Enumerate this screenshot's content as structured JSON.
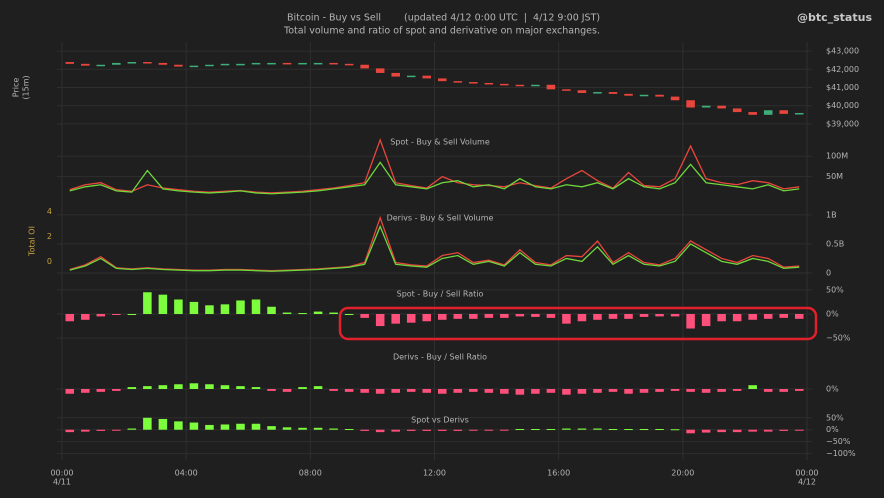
{
  "header": {
    "title": "Bitcoin - Buy vs Sell",
    "updated": "(updated 4/12 0:00 UTC  |  4/12 9:00 JST)",
    "subtitle": "Total volume and ratio of spot and derivative on major exchanges.",
    "handle": "@btc_status"
  },
  "x_axis": {
    "xlim": [
      0,
      24
    ],
    "xticks": [
      {
        "value": 0,
        "label": "00:00"
      },
      {
        "value": 4,
        "label": "04:00"
      },
      {
        "value": 8,
        "label": "08:00"
      },
      {
        "value": 12,
        "label": "12:00"
      },
      {
        "value": 16,
        "label": "16:00"
      },
      {
        "value": 20,
        "label": "20:00"
      },
      {
        "value": 24,
        "label": "00:00"
      }
    ],
    "dates": [
      {
        "value": 0,
        "label": "4/11"
      },
      {
        "value": 24,
        "label": "4/12"
      }
    ],
    "x": [
      0,
      0.5,
      1,
      1.5,
      2,
      2.5,
      3,
      3.5,
      4,
      4.5,
      5,
      5.5,
      6,
      6.5,
      7,
      7.5,
      8,
      8.5,
      9,
      9.5,
      10,
      10.5,
      11,
      11.5,
      12,
      12.5,
      13,
      13.5,
      14,
      14.5,
      15,
      15.5,
      16,
      16.5,
      17,
      17.5,
      18,
      18.5,
      19,
      19.5,
      20,
      20.5,
      21,
      21.5,
      22,
      22.5,
      23,
      23.5
    ]
  },
  "chart_data": [
    {
      "type": "candlestick",
      "ylabel": "Price",
      "ylabel_note": "(15m)",
      "ylim": [
        38500,
        43500
      ],
      "yticks": [
        {
          "value": 39000,
          "label": "$39,000"
        },
        {
          "value": 40000,
          "label": "$40,000"
        },
        {
          "value": 41000,
          "label": "$41,000"
        },
        {
          "value": 42000,
          "label": "$42,000"
        },
        {
          "value": 43000,
          "label": "$43,000"
        }
      ],
      "up_color": "#3fae7a",
      "down_color": "#e8463c",
      "open": [
        42400,
        42300,
        42200,
        42250,
        42350,
        42400,
        42350,
        42250,
        42150,
        42200,
        42250,
        42300,
        42300,
        42350,
        42350,
        42300,
        42350,
        42350,
        42300,
        42250,
        42050,
        41800,
        41600,
        41650,
        41500,
        41350,
        41300,
        41250,
        41200,
        41150,
        41100,
        41150,
        40900,
        40850,
        40700,
        40750,
        40650,
        40550,
        40600,
        40500,
        40300,
        39900,
        40000,
        39850,
        39650,
        39500,
        39750,
        39550
      ],
      "close": [
        42300,
        42200,
        42250,
        42350,
        42400,
        42350,
        42250,
        42150,
        42200,
        42250,
        42300,
        42300,
        42350,
        42350,
        42300,
        42350,
        42350,
        42300,
        42250,
        42050,
        41800,
        41600,
        41650,
        41500,
        41350,
        41300,
        41250,
        41200,
        41150,
        41100,
        41150,
        40900,
        40850,
        40700,
        40750,
        40650,
        40550,
        40600,
        40500,
        40300,
        39900,
        40000,
        39850,
        39650,
        39500,
        39750,
        39550,
        39600
      ]
    },
    {
      "type": "step",
      "title": "Spot - Buy & Sell Volume",
      "ylim": [
        0,
        130
      ],
      "yticks": [
        {
          "value": 50,
          "label": "50M"
        },
        {
          "value": 100,
          "label": "100M"
        }
      ],
      "series": [
        {
          "color": "#e8463c",
          "values": [
            18,
            30,
            35,
            18,
            14,
            30,
            22,
            18,
            14,
            12,
            14,
            16,
            12,
            10,
            12,
            14,
            18,
            22,
            28,
            35,
            140,
            35,
            28,
            22,
            50,
            35,
            30,
            28,
            25,
            35,
            28,
            22,
            45,
            65,
            40,
            22,
            60,
            28,
            25,
            45,
            125,
            45,
            35,
            30,
            40,
            35,
            20,
            25
          ]
        },
        {
          "color": "#6fd63c",
          "values": [
            15,
            25,
            30,
            15,
            12,
            65,
            20,
            15,
            12,
            10,
            12,
            15,
            10,
            8,
            10,
            12,
            15,
            20,
            25,
            30,
            85,
            30,
            25,
            20,
            35,
            40,
            25,
            30,
            20,
            45,
            25,
            20,
            30,
            25,
            35,
            20,
            45,
            25,
            20,
            35,
            80,
            35,
            30,
            25,
            20,
            30,
            15,
            20
          ]
        }
      ]
    },
    {
      "type": "step",
      "title": "Derivs - Buy & Sell Volume",
      "ylim": [
        0,
        1.1
      ],
      "yticks": [
        0,
        {
          "value": 0.5,
          "label": "0.5B"
        },
        {
          "value": 1,
          "label": "1B"
        }
      ],
      "oi_axis": {
        "label": "Total OI",
        "lim": [
          -0.9,
          4.2
        ],
        "ticks": [
          0,
          2,
          4
        ],
        "color": "#c8a040"
      },
      "series": [
        {
          "color": "#e8463c",
          "values": [
            0.06,
            0.14,
            0.28,
            0.09,
            0.07,
            0.09,
            0.07,
            0.06,
            0.05,
            0.05,
            0.06,
            0.06,
            0.05,
            0.04,
            0.05,
            0.06,
            0.07,
            0.09,
            0.11,
            0.18,
            0.95,
            0.18,
            0.14,
            0.12,
            0.3,
            0.35,
            0.18,
            0.22,
            0.14,
            0.4,
            0.18,
            0.14,
            0.3,
            0.28,
            0.55,
            0.18,
            0.35,
            0.18,
            0.14,
            0.25,
            0.55,
            0.4,
            0.25,
            0.18,
            0.3,
            0.25,
            0.1,
            0.12
          ]
        },
        {
          "color": "#6fd63c",
          "values": [
            0.05,
            0.12,
            0.25,
            0.08,
            0.06,
            0.08,
            0.06,
            0.05,
            0.04,
            0.04,
            0.05,
            0.05,
            0.04,
            0.03,
            0.04,
            0.05,
            0.06,
            0.08,
            0.1,
            0.15,
            0.8,
            0.15,
            0.12,
            0.1,
            0.25,
            0.3,
            0.15,
            0.2,
            0.12,
            0.35,
            0.15,
            0.12,
            0.25,
            0.2,
            0.45,
            0.15,
            0.3,
            0.15,
            0.12,
            0.2,
            0.5,
            0.35,
            0.2,
            0.15,
            0.25,
            0.2,
            0.08,
            0.1
          ]
        }
      ]
    },
    {
      "type": "bar",
      "title": "Spot - Buy / Sell Ratio",
      "ylim": [
        -60,
        60
      ],
      "yticks": [
        {
          "value": -50,
          "label": "−50%"
        },
        {
          "value": 0,
          "label": "0%"
        },
        {
          "value": 50,
          "label": "50%"
        }
      ],
      "pos_color": "#7cfc3c",
      "neg_color": "#ff4f7b",
      "values": [
        -15,
        -12,
        -5,
        -2,
        0,
        45,
        40,
        30,
        25,
        18,
        20,
        28,
        30,
        15,
        3,
        2,
        5,
        3,
        0,
        -8,
        -25,
        -20,
        -18,
        -15,
        -12,
        -10,
        -10,
        -8,
        -8,
        -5,
        -6,
        -8,
        -20,
        -15,
        -12,
        -10,
        -10,
        -6,
        -5,
        -5,
        -30,
        -25,
        -15,
        -15,
        -12,
        -10,
        -8,
        -10
      ]
    },
    {
      "type": "bar",
      "title": "Derivs - Buy / Sell Ratio",
      "ylim": [
        -20,
        20
      ],
      "yticks": [
        {
          "value": 0,
          "label": "0%"
        }
      ],
      "pos_color": "#7cfc3c",
      "neg_color": "#ff4f7b",
      "values": [
        -5,
        -4,
        -3,
        -2,
        2,
        3,
        4,
        5,
        6,
        5,
        4,
        3,
        2,
        -2,
        -3,
        2,
        3,
        -2,
        -3,
        -4,
        -5,
        -4,
        -3,
        -4,
        -5,
        -4,
        -3,
        -4,
        -5,
        -6,
        -5,
        -4,
        -6,
        -5,
        -4,
        -3,
        -5,
        -4,
        -3,
        -2,
        -3,
        -4,
        -3,
        -2,
        4,
        -3,
        -3,
        -2
      ]
    },
    {
      "type": "bar",
      "title": "Spot vs Derivs",
      "ylim": [
        -110,
        70
      ],
      "yticks": [
        {
          "value": -100,
          "label": "−100%"
        },
        {
          "value": -50,
          "label": "−50%"
        },
        {
          "value": 0,
          "label": "0%"
        },
        {
          "value": 50,
          "label": "50%"
        }
      ],
      "pos_color": "#7cfc3c",
      "neg_color": "#ff4f7b",
      "values": [
        -10,
        -8,
        -5,
        -3,
        5,
        50,
        45,
        35,
        30,
        20,
        22,
        25,
        25,
        15,
        10,
        8,
        8,
        5,
        3,
        -5,
        -10,
        -8,
        -5,
        -5,
        -5,
        -5,
        -3,
        -3,
        -2,
        3,
        3,
        3,
        5,
        5,
        5,
        3,
        3,
        3,
        3,
        2,
        -15,
        -12,
        -10,
        -10,
        -8,
        -8,
        -5,
        -3
      ]
    }
  ]
}
